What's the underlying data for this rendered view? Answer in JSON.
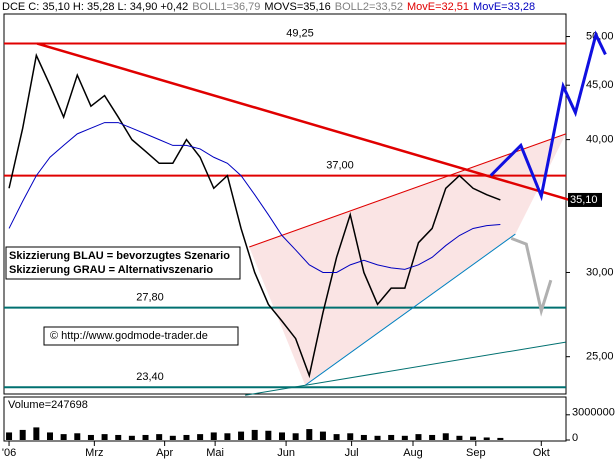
{
  "chart_data": {
    "type": "line",
    "log_scale": true,
    "header": [
      {
        "text": "DCE C: 35,10 H: 35,28 L: 34,90 +0,42",
        "color": "#000000"
      },
      {
        "text": "BOLL1=36,79",
        "color": "#808080"
      },
      {
        "text": "MOVS=35,16",
        "color": "#000000"
      },
      {
        "text": "BOLL2=33,52",
        "color": "#808080"
      },
      {
        "text": "MovE=32,51",
        "color": "#e00000"
      },
      {
        "text": "MovE=33,28",
        "color": "#0000c0"
      }
    ],
    "xlim": [
      -0.37,
      40.81
    ],
    "xticks": [
      {
        "value": 0,
        "label": "'06"
      },
      {
        "value": 6.25,
        "label": "Mrz"
      },
      {
        "value": 11.4,
        "label": "Apr"
      },
      {
        "value": 15.1,
        "label": "Mai"
      },
      {
        "value": 20.3,
        "label": "Jun"
      },
      {
        "value": 25.1,
        "label": "Jul"
      },
      {
        "value": 29.6,
        "label": "Aug"
      },
      {
        "value": 34.2,
        "label": "Sep"
      },
      {
        "value": 39,
        "label": "Okt"
      }
    ],
    "ylim": [
      23.06,
      52.5
    ],
    "yticks": [
      {
        "value": 25,
        "label": "25,00"
      },
      {
        "value": 30,
        "label": "30,00"
      },
      {
        "value": 40,
        "label": "40,00"
      },
      {
        "value": 45,
        "label": "45,00"
      },
      {
        "value": 50,
        "label": "50,00"
      }
    ],
    "last_price": {
      "value": 35.1,
      "label": "35,10"
    },
    "x": [
      0,
      1,
      2,
      3,
      4,
      5,
      6,
      7,
      8,
      9,
      10,
      11,
      12,
      13,
      14,
      15,
      16,
      17,
      18,
      19,
      20,
      21,
      22,
      23,
      24,
      25,
      26,
      27,
      28,
      29,
      30,
      31,
      32,
      33,
      34,
      35,
      36
    ],
    "series": [
      {
        "name": "Kurs",
        "color": "#000000",
        "values": [
          36,
          41,
          48,
          45,
          42,
          46,
          43,
          44,
          42,
          40,
          39,
          38,
          38,
          40,
          38.5,
          36,
          37,
          33,
          30,
          28,
          27,
          26,
          24,
          27.5,
          31,
          34,
          30,
          28,
          29,
          29,
          32,
          33,
          36,
          37,
          36,
          35.5,
          35.1
        ]
      },
      {
        "name": "MovE",
        "color": "#0000c0",
        "values": [
          33,
          35,
          37,
          38.5,
          39.5,
          40.5,
          41,
          41.5,
          41.5,
          41,
          40.5,
          40,
          39.5,
          39.5,
          39.2,
          38.5,
          38,
          37,
          35.5,
          34,
          32.5,
          31.5,
          30.5,
          30,
          30,
          30.5,
          30.8,
          30.5,
          30.3,
          30.2,
          30.5,
          31,
          31.8,
          32.5,
          33,
          33.2,
          33.28
        ]
      }
    ],
    "levels": [
      {
        "value": 49.25,
        "label": "49,25"
      },
      {
        "value": 37,
        "label": "37,00"
      },
      {
        "value": 27.8,
        "label": "27,80"
      },
      {
        "value": 23.4,
        "label": "23,40"
      }
    ],
    "level_colors": [
      "#e00000",
      "#e00000",
      "#007070",
      "#007070"
    ],
    "trendlines": [
      {
        "color": "#e00000",
        "x": [
          2.06,
          41.2
        ],
        "values": [
          49.25,
          35.06
        ]
      },
      {
        "color": "#e00000",
        "x": [
          17.6,
          40.8
        ],
        "values": [
          31.7,
          40.5
        ]
      },
      {
        "color": "#0080c0",
        "x": [
          21.7,
          37.1
        ],
        "values": [
          23.5,
          32.6
        ]
      },
      {
        "color": "#007070",
        "x": [
          17.3,
          40.8
        ],
        "values": [
          23.0,
          25.8
        ]
      }
    ],
    "scenarios": [
      {
        "name": "Skizzierung BLAU = bevorzugtes Szenario",
        "color": "#1010e0",
        "x": [
          35.3,
          37.5,
          39.0,
          40.6,
          41.5,
          43.0,
          43.7
        ],
        "values": [
          37.0,
          39.5,
          35.4,
          44.9,
          42.4,
          50.2,
          48.1
        ]
      },
      {
        "name": "Skizzierung GRAU = Alternativszenario",
        "color": "#b0b0b0",
        "x": [
          36.8,
          37.9,
          39.0,
          39.7
        ],
        "values": [
          32.3,
          31.9,
          27.6,
          29.5
        ]
      }
    ],
    "copyright": "© http://www.godmode-trader.de",
    "volume": {
      "label": "Volume=247698",
      "ylim": [
        0,
        5000000
      ],
      "yticks": [
        0,
        3000000
      ],
      "values": [
        900000,
        1200000,
        1500000,
        900000,
        700000,
        800000,
        600000,
        700000,
        600000,
        500000,
        600000,
        700000,
        500000,
        600000,
        700000,
        900000,
        800000,
        1000000,
        1200000,
        1100000,
        900000,
        800000,
        1300000,
        1000000,
        700000,
        800000,
        600000,
        500000,
        600000,
        500000,
        700000,
        600000,
        800000,
        500000,
        400000,
        300000,
        247698
      ]
    }
  }
}
